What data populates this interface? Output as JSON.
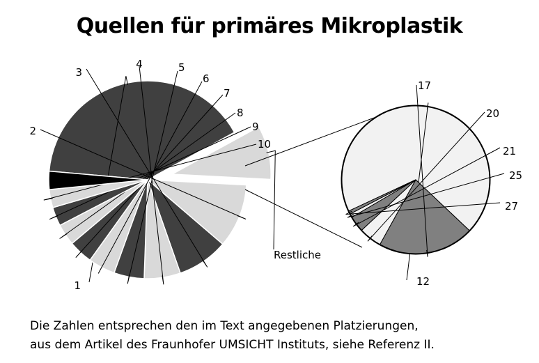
{
  "chart_data": {
    "type": "pie",
    "title": "Quellen für primäres Mikroplastik",
    "main_pie": {
      "slices": [
        {
          "label": "1",
          "value": 37.0,
          "color": "#404040"
        },
        {
          "label": "Restliche",
          "value": 8.0,
          "color": "#d9d9d9",
          "exploded": true
        },
        {
          "label": "2",
          "value": 9.5,
          "color": "#d9d9d9"
        },
        {
          "label": "3",
          "value": 7.6,
          "color": "#404040"
        },
        {
          "label": "4",
          "value": 5.4,
          "color": "#d9d9d9"
        },
        {
          "label": "5",
          "value": 4.5,
          "color": "#404040"
        },
        {
          "label": "6",
          "value": 4.0,
          "color": "#d9d9d9"
        },
        {
          "label": "7",
          "value": 3.6,
          "color": "#404040"
        },
        {
          "label": "8",
          "value": 3.2,
          "color": "#d9d9d9"
        },
        {
          "label": "9",
          "value": 2.8,
          "color": "#404040"
        },
        {
          "label": "10",
          "value": 2.7,
          "color": "#d9d9d9"
        },
        {
          "label": "",
          "value": 2.7,
          "color": "#000000"
        }
      ]
    },
    "detail_pie": {
      "slices": [
        {
          "label": "12",
          "value": 69.0,
          "color": "#f2f2f2"
        },
        {
          "label": "17",
          "value": 21.0,
          "color": "#808080"
        },
        {
          "label": "20",
          "value": 5.0,
          "color": "#f2f2f2"
        },
        {
          "label": "21",
          "value": 3.5,
          "color": "#808080"
        },
        {
          "label": "25",
          "value": 0.8,
          "color": "#f2f2f2"
        },
        {
          "label": "27",
          "value": 0.7,
          "color": "#808080"
        }
      ]
    }
  },
  "footnote": {
    "line1": "Die Zahlen entsprechen den im Text angegebenen Platzierungen,",
    "line2": "aus dem Artikel des Fraunhofer UMSICHT Instituts, siehe Referenz  II."
  }
}
